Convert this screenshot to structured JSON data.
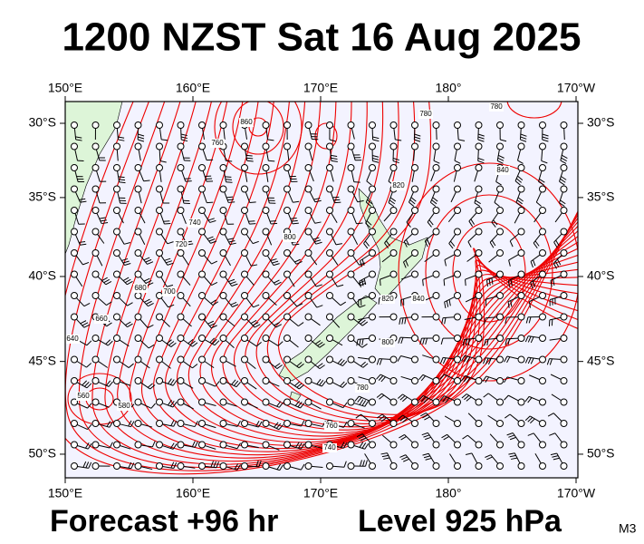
{
  "title": "1200 NZST Sat 16 Aug 2025",
  "footer": {
    "forecast": "Forecast +96 hr",
    "level": "Level 925 hPa",
    "code": "M3"
  },
  "map": {
    "lon_ticks": [
      {
        "value": 150,
        "label": "150°E"
      },
      {
        "value": 160,
        "label": "160°E"
      },
      {
        "value": 170,
        "label": "170°E"
      },
      {
        "value": 180,
        "label": "180°"
      },
      {
        "value": 190,
        "label": "170°W"
      }
    ],
    "lat_ticks": [
      {
        "value": -30,
        "label": "30°S"
      },
      {
        "value": -35,
        "label": "35°S"
      },
      {
        "value": -40,
        "label": "40°S"
      },
      {
        "value": -45,
        "label": "45°S"
      },
      {
        "value": -50,
        "label": "50°S"
      }
    ],
    "contour_labels": [
      "780",
      "760",
      "740",
      "720",
      "700",
      "680",
      "660",
      "640",
      "560",
      "580",
      "800",
      "820",
      "840",
      "820",
      "800",
      "780",
      "760",
      "740",
      "840",
      "780",
      "860"
    ]
  }
}
